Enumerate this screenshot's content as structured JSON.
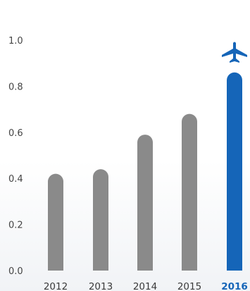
{
  "chart_data": {
    "type": "bar",
    "categories": [
      "2012",
      "2013",
      "2014",
      "2015",
      "2016"
    ],
    "values": [
      0.42,
      0.44,
      0.59,
      0.68,
      0.86
    ],
    "highlight_index": 4,
    "highlight_icon": "airplane-icon",
    "ylim": [
      0,
      1.0
    ],
    "yticks": [
      "0.0",
      "0.2",
      "0.4",
      "0.6",
      "0.8",
      "1.0"
    ],
    "title": "",
    "xlabel": "",
    "ylabel": "",
    "grid": false,
    "colors": {
      "bar": "#8a8a8a",
      "highlight": "#1565b8"
    }
  }
}
